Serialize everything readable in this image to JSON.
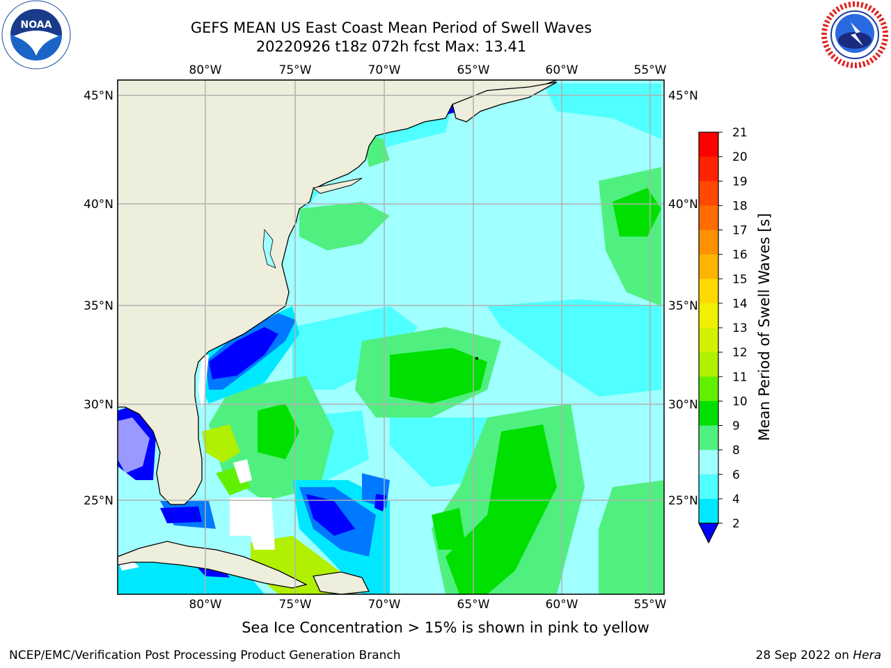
{
  "title": {
    "line1": "GEFS MEAN US East Coast Mean Period of Swell Waves",
    "line2": "20220926 t18z 072h fcst   Max: 13.41"
  },
  "logos": {
    "left": {
      "name": "noaa-logo",
      "text": "NOAA",
      "ring_text": "NATIONAL OCEANIC AND ATMOSPHERIC ADMINISTRATION · U.S. DEPARTMENT OF COMMERCE"
    },
    "right": {
      "name": "nws-logo",
      "ring_text": "NATIONAL WEATHER SERVICE"
    }
  },
  "map": {
    "lon_labels": [
      "80°W",
      "75°W",
      "70°W",
      "65°W",
      "60°W",
      "55°W"
    ],
    "lat_labels": [
      "45°N",
      "40°N",
      "35°N",
      "30°N",
      "25°N"
    ],
    "land_color": "#eeeedc",
    "grid_color": "#b0b0b0"
  },
  "colorbar": {
    "label": "Mean Period of Swell Waves [s]",
    "ticks": [
      "21",
      "20",
      "19",
      "18",
      "17",
      "16",
      "15",
      "14",
      "13",
      "12",
      "11",
      "10",
      "9",
      "8",
      "6",
      "4",
      "2"
    ],
    "colors": [
      "#ff0000",
      "#ff2400",
      "#ff4800",
      "#ff6c00",
      "#ff9000",
      "#ffb400",
      "#ffd800",
      "#f0f000",
      "#d4f000",
      "#b0f000",
      "#60f000",
      "#00e000",
      "#50f080",
      "#a0ffff",
      "#50ffff",
      "#00e8ff",
      "#0078ff",
      "#0000ff"
    ],
    "extend_color": "#0000ff"
  },
  "footer": {
    "ice_note": "Sea Ice Concentration > 15% is shown in pink to yellow",
    "left": "NCEP/EMC/Verification Post Processing Product Generation Branch",
    "right_date": "28 Sep 2022 on ",
    "right_host": "Hera"
  }
}
